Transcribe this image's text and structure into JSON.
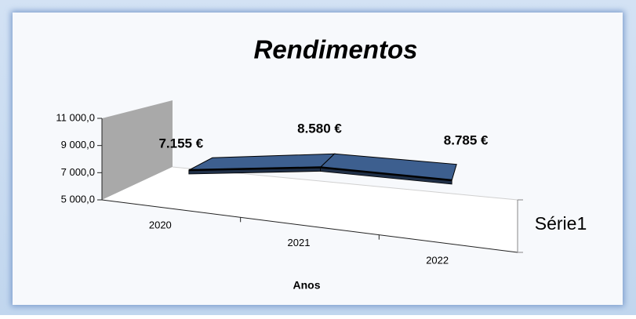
{
  "chart_data": {
    "type": "line3d",
    "title": "Rendimentos",
    "x_label": "Anos",
    "categories": [
      "2020",
      "2021",
      "2022"
    ],
    "series": [
      {
        "name": "Série1",
        "color": "#3d5f8f",
        "values": [
          7155,
          8580,
          8785
        ],
        "value_labels": [
          "7.155  €",
          "8.580 €",
          "8.785 €"
        ]
      }
    ],
    "ylim": [
      5000,
      11000
    ],
    "yticks": [
      {
        "value": 5000,
        "label": "5 000,0"
      },
      {
        "value": 7000,
        "label": "7 000,0"
      },
      {
        "value": 9000,
        "label": "9 000,0"
      },
      {
        "value": 11000,
        "label": "11 000,0"
      }
    ],
    "grid": false
  }
}
